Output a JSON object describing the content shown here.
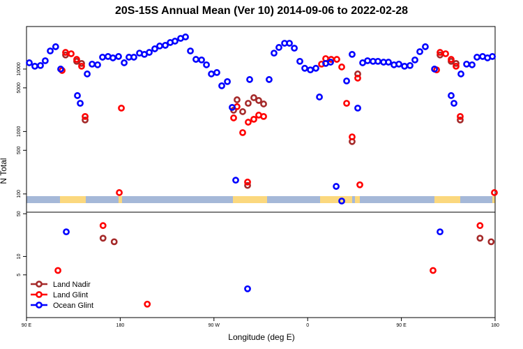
{
  "chart_data": [
    {
      "type": "scatter",
      "title": "20S-15S Annual Mean (Ver 10)   2014-09-06 to 2022-02-28",
      "ylabel": "N Total",
      "xlim": [
        90,
        540
      ],
      "ylim": [
        51,
        48000
      ],
      "log_y": true,
      "yticks": [
        100,
        500,
        1000,
        5000,
        10000
      ],
      "series": [
        {
          "color": "#a52a2a",
          "x": [
            127.5,
            138.2,
            142.9,
            146.3,
            288.9,
            292.2,
            297.6,
            302.9,
            308.3,
            313,
            317.7,
            302.3,
            402.7,
            408.1,
            487.1,
            497.8,
            502.5,
            506.5
          ],
          "values": [
            16800,
            13300,
            12300,
            1530,
            2190,
            3220,
            2080,
            2830,
            3480,
            3140,
            2760,
            137,
            690,
            8350,
            16800,
            13300,
            12300,
            1530
          ]
        },
        {
          "color": "#ff0000",
          "x": [
            124.2,
            127.5,
            132.9,
            138.2,
            142.9,
            146.3,
            181.1,
            179.1,
            288.9,
            292.2,
            297.6,
            302.9,
            308.3,
            313,
            317.7,
            302.3,
            373.3,
            377.3,
            382.6,
            388,
            392.7,
            397.4,
            402.7,
            408.1,
            410.1,
            483.8,
            487.1,
            492.5,
            497.8,
            502.5,
            506.5,
            539.3
          ],
          "values": [
            9500,
            18500,
            17600,
            14300,
            11100,
            1740,
            2370,
            105,
            1650,
            2500,
            960,
            1410,
            1570,
            1830,
            1740,
            155,
            12000,
            14700,
            14300,
            14300,
            10800,
            2830,
            820,
            7160,
            140,
            9700,
            18500,
            17600,
            14300,
            11100,
            1740,
            105
          ]
        },
        {
          "color": "#0000ff",
          "x": [
            92.7,
            98,
            103.4,
            108,
            112.8,
            118,
            122.8,
            138.9,
            141.6,
            148.3,
            153,
            158.3,
            163,
            168.3,
            173,
            178.4,
            183.8,
            188.4,
            193.1,
            198.5,
            203.2,
            207.9,
            213.2,
            217.9,
            223.3,
            228,
            232.6,
            238,
            242.7,
            247.4,
            252.7,
            258.1,
            262.8,
            267.5,
            272.8,
            277.5,
            282.9,
            287.5,
            290.9,
            304.3,
            323,
            327.7,
            332.4,
            337.8,
            342.5,
            347.2,
            352.5,
            357.2,
            362.6,
            367.9,
            371.3,
            377.3,
            382,
            387.4,
            392.7,
            397.4,
            402.7,
            408.1,
            412.8,
            417.5,
            422.8,
            427.5,
            432.9,
            437.6,
            442.9,
            447.6,
            453,
            458.3,
            463,
            467.7,
            473,
            481.8,
            497.8,
            500.5,
            507.2,
            512.6,
            517.9,
            522.6,
            528,
            532.7,
            537.4
          ],
          "values": [
            12600,
            11100,
            11400,
            13600,
            19500,
            22800,
            10000,
            3760,
            2830,
            8350,
            12000,
            11700,
            15500,
            15900,
            15100,
            15900,
            12600,
            15500,
            15500,
            18000,
            17200,
            18500,
            21100,
            23400,
            24000,
            26600,
            28000,
            31000,
            32700,
            19500,
            14300,
            14000,
            11700,
            8350,
            8800,
            5400,
            6300,
            2430,
            166,
            6800,
            6800,
            18000,
            22200,
            25900,
            25900,
            21600,
            13300,
            10300,
            9700,
            10300,
            3570,
            12300,
            12900,
            132,
            77,
            6450,
            17200,
            2370,
            12600,
            13600,
            13300,
            13300,
            12900,
            12900,
            11700,
            12000,
            11100,
            11400,
            14000,
            19000,
            22800,
            10000,
            3760,
            2830,
            8350,
            12000,
            11700,
            15500,
            15900,
            15100,
            15900
          ]
        }
      ]
    },
    {
      "type": "scatter",
      "xlabel": "Longitude (deg E)",
      "legend": "bottom-left",
      "xlim": [
        90,
        540
      ],
      "ylim": [
        1,
        53
      ],
      "log_y": true,
      "xticks": [
        {
          "value": 90,
          "label": "90 E"
        },
        180,
        {
          "value": 270,
          "label": "90 W"
        },
        {
          "value": 360,
          "label": "0"
        },
        {
          "value": 450,
          "label": "90 E"
        },
        {
          "value": 540,
          "label": "180"
        }
      ],
      "yticks": [
        5,
        10,
        50
      ],
      "series": [
        {
          "name": "Land Nadir",
          "color": "#a52a2a",
          "x": [
            163.5,
            174.2,
            525.5,
            536.2
          ],
          "values": [
            19.9,
            17.4,
            19.9,
            17.4
          ]
        },
        {
          "name": "Land Glint",
          "color": "#ff0000",
          "x": [
            120.2,
            163.5,
            206,
            480.4,
            525.5
          ],
          "values": [
            5.9,
            32,
            1.66,
            5.9,
            32
          ]
        },
        {
          "name": "Ocean Glint",
          "color": "#0000ff",
          "x": [
            128.2,
            302.3,
            487.1
          ],
          "values": [
            25.3,
            2.96,
            25.3
          ]
        }
      ]
    }
  ]
}
